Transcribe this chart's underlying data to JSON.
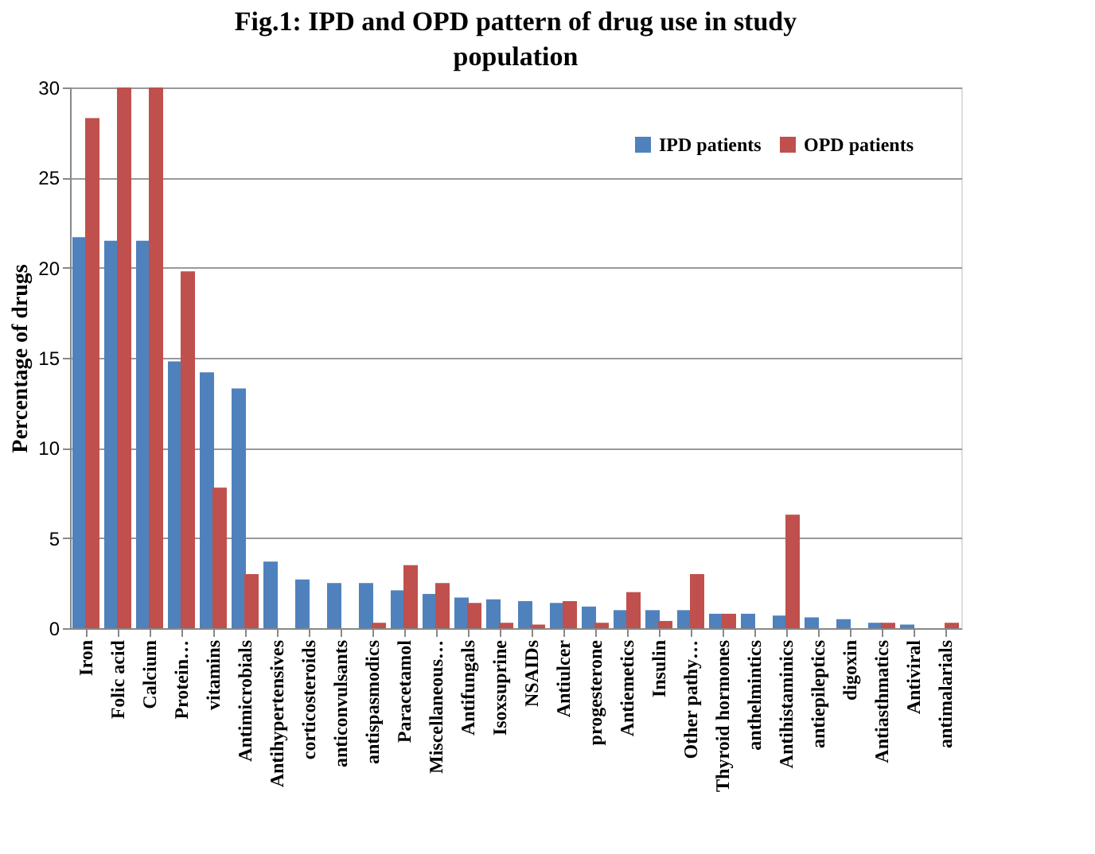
{
  "chart_data": {
    "type": "bar",
    "title": "Fig.1: IPD and OPD pattern of drug use in study population",
    "ylabel": "Percentage  of drugs",
    "categories": [
      "Iron",
      "Folic acid",
      "Calcium",
      "Protein…",
      "vitamins",
      "Antimicrobials",
      "Antihypertensives",
      "corticosteroids",
      "anticonvulsants",
      "antispasmodics",
      "Paracetamol",
      "Miscellaneous…",
      "Antifungals",
      "Isoxsuprine",
      "NSAIDs",
      "Antiulcer",
      "progesterone",
      "Antiemetics",
      "Insulin",
      "Other pathy…",
      "Thyroid hormones",
      "anthelmintics",
      "Antihistaminics",
      "antiepileptics",
      "digoxin",
      "Antiasthmatics",
      "Antiviral",
      "antimalarials"
    ],
    "series": [
      {
        "name": "IPD patients",
        "color": "#4f81bd",
        "values": [
          21.7,
          21.5,
          21.5,
          14.8,
          14.2,
          13.3,
          3.7,
          2.7,
          2.5,
          2.5,
          2.1,
          1.9,
          1.7,
          1.6,
          1.5,
          1.4,
          1.2,
          1.0,
          1.0,
          1.0,
          0.8,
          0.8,
          0.7,
          0.6,
          0.5,
          0.3,
          0.2,
          0
        ]
      },
      {
        "name": "OPD patients",
        "color": "#c0504d",
        "values": [
          28.3,
          30,
          30,
          19.8,
          7.8,
          3.0,
          0,
          0,
          0,
          0.3,
          3.5,
          2.5,
          1.4,
          0.3,
          0.2,
          1.5,
          0.3,
          2.0,
          0.4,
          3.0,
          0.8,
          0,
          6.3,
          0,
          0,
          0.3,
          0,
          0.3
        ]
      }
    ],
    "ylim": [
      0,
      30
    ],
    "yticks": [
      0,
      5,
      10,
      15,
      20,
      25,
      30
    ],
    "grid": "y",
    "legend": "top right"
  }
}
